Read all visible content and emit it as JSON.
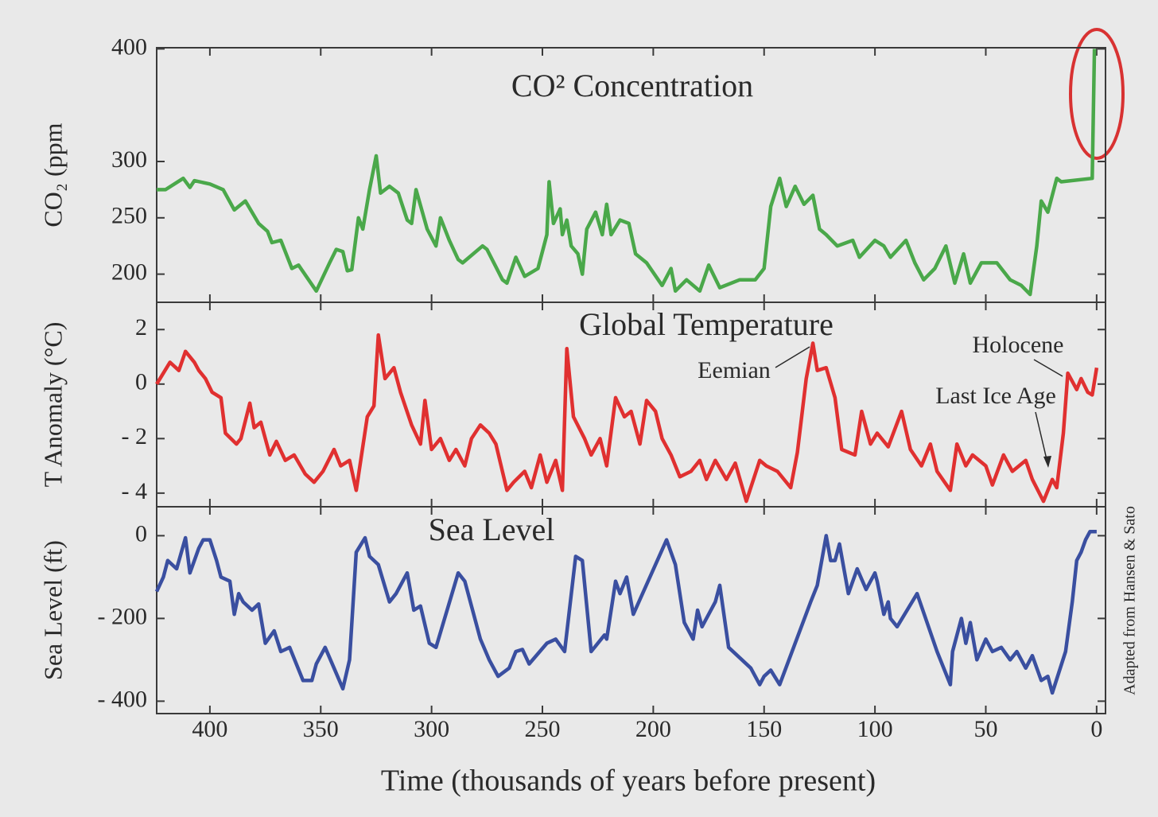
{
  "chart_data": [
    {
      "type": "line",
      "title": "CO² Concentration",
      "y_label": "CO₂ (ppm",
      "color": "#4aa84a",
      "xlim": [
        424,
        -4
      ],
      "ylim": [
        175,
        401
      ],
      "yticks": [
        200,
        250,
        300,
        400
      ],
      "x": [
        424,
        420,
        412,
        409,
        407,
        400,
        394,
        389,
        384,
        378,
        374,
        372,
        368,
        363,
        360,
        352,
        346,
        343,
        340,
        338,
        336,
        333,
        331,
        328,
        325,
        323,
        319,
        315,
        311,
        309,
        307,
        302,
        298,
        296,
        292,
        288,
        286,
        277,
        275,
        268,
        266,
        262,
        258,
        252,
        248,
        247,
        245,
        242,
        241,
        239,
        237,
        234,
        232,
        230,
        226,
        223,
        221,
        219,
        215,
        211,
        208,
        203,
        196,
        192,
        190,
        185,
        179,
        175,
        170,
        161,
        154,
        150,
        147,
        143,
        140,
        136,
        132,
        128,
        125,
        122,
        117,
        110,
        107,
        100,
        96,
        93,
        86,
        82,
        78,
        73,
        68,
        64,
        60,
        57,
        52,
        45,
        39,
        34,
        30,
        27,
        25,
        22,
        18,
        16,
        2,
        1
      ],
      "values": [
        275,
        275,
        285,
        277,
        283,
        280,
        275,
        257,
        265,
        245,
        238,
        228,
        230,
        205,
        208,
        185,
        210,
        222,
        220,
        203,
        204,
        250,
        240,
        275,
        305,
        272,
        278,
        272,
        248,
        245,
        275,
        240,
        225,
        250,
        230,
        213,
        210,
        225,
        222,
        195,
        192,
        215,
        198,
        205,
        235,
        282,
        245,
        258,
        235,
        248,
        225,
        218,
        200,
        240,
        255,
        235,
        262,
        235,
        248,
        245,
        218,
        210,
        190,
        205,
        185,
        195,
        185,
        208,
        188,
        195,
        195,
        205,
        260,
        285,
        260,
        278,
        262,
        270,
        240,
        235,
        225,
        230,
        215,
        230,
        225,
        215,
        230,
        210,
        195,
        205,
        225,
        192,
        218,
        192,
        210,
        210,
        195,
        190,
        182,
        225,
        265,
        255,
        285,
        282,
        285,
        400
      ]
    },
    {
      "type": "line",
      "title": "Global Temperature",
      "y_label": "T Anomaly (°C)",
      "color": "#e03030",
      "xlim": [
        424,
        -4
      ],
      "ylim": [
        -4.5,
        3
      ],
      "yticks": [
        {
          "value": -4,
          "label": "- 4"
        },
        {
          "value": -2,
          "label": "- 2"
        },
        0,
        2
      ],
      "annotations": [
        "Eemian",
        "Holocene",
        "Last Ice Age"
      ],
      "x": [
        424,
        418,
        414,
        411,
        407,
        405,
        402,
        399,
        395,
        393,
        388,
        386,
        382,
        380,
        377,
        373,
        370,
        366,
        362,
        357,
        353,
        349,
        344,
        341,
        337,
        334,
        329,
        326,
        324,
        321,
        317,
        314,
        309,
        305,
        303,
        300,
        296,
        292,
        289,
        285,
        282,
        278,
        274,
        271,
        266,
        263,
        258,
        255,
        251,
        248,
        244,
        241,
        239,
        236,
        231,
        228,
        224,
        221,
        217,
        213,
        210,
        206,
        203,
        199,
        196,
        192,
        188,
        183,
        179,
        176,
        172,
        167,
        163,
        158,
        152,
        149,
        144,
        138,
        135,
        131,
        128,
        126,
        122,
        118,
        115,
        109,
        106,
        102,
        99,
        94,
        88,
        84,
        79,
        75,
        72,
        66,
        63,
        59,
        56,
        50,
        47,
        42,
        38,
        32,
        29,
        24,
        20,
        18,
        15,
        13,
        9,
        7,
        4,
        2,
        0
      ],
      "values": [
        0,
        0.8,
        0.5,
        1.2,
        0.8,
        0.5,
        0.2,
        -0.3,
        -0.5,
        -1.8,
        -2.2,
        -2.0,
        -0.7,
        -1.6,
        -1.4,
        -2.6,
        -2.1,
        -2.8,
        -2.6,
        -3.3,
        -3.6,
        -3.2,
        -2.4,
        -3.0,
        -2.8,
        -3.9,
        -1.2,
        -0.8,
        1.8,
        0.2,
        0.6,
        -0.3,
        -1.5,
        -2.2,
        -0.6,
        -2.4,
        -2.0,
        -2.8,
        -2.4,
        -3.0,
        -2.0,
        -1.5,
        -1.8,
        -2.2,
        -3.9,
        -3.6,
        -3.2,
        -3.8,
        -2.6,
        -3.6,
        -2.8,
        -3.9,
        1.3,
        -1.2,
        -2.0,
        -2.6,
        -2.0,
        -3.0,
        -0.5,
        -1.2,
        -1.0,
        -2.2,
        -0.6,
        -1.0,
        -2.0,
        -2.6,
        -3.4,
        -3.2,
        -2.8,
        -3.5,
        -2.8,
        -3.5,
        -2.9,
        -4.3,
        -2.8,
        -3.0,
        -3.2,
        -3.8,
        -2.5,
        0.2,
        1.5,
        0.5,
        0.6,
        -0.5,
        -2.4,
        -2.6,
        -1.0,
        -2.2,
        -1.8,
        -2.3,
        -1.0,
        -2.4,
        -3.0,
        -2.2,
        -3.2,
        -3.9,
        -2.2,
        -3.0,
        -2.6,
        -3.0,
        -3.7,
        -2.6,
        -3.2,
        -2.8,
        -3.5,
        -4.3,
        -3.5,
        -3.8,
        -1.8,
        0.4,
        -0.2,
        0.2,
        -0.3,
        -0.4,
        0.6
      ]
    },
    {
      "type": "line",
      "title": "Sea Level",
      "y_label": "Sea Level (ft)",
      "color": "#3a4fa0",
      "x_label": "Time (thousands of years before present)",
      "source": "Adapted from Hansen & Sato",
      "xlim": [
        424,
        -4
      ],
      "ylim": [
        -430,
        70
      ],
      "xticks": [
        400,
        350,
        300,
        250,
        200,
        150,
        100,
        50,
        0
      ],
      "yticks": [
        {
          "value": -400,
          "label": "- 400"
        },
        {
          "value": -200,
          "label": "- 200"
        },
        0
      ],
      "x": [
        424,
        421,
        419,
        415,
        411,
        409,
        405,
        403,
        400,
        397,
        395,
        391,
        389,
        387,
        385,
        381,
        378,
        375,
        371,
        368,
        364,
        361,
        358,
        354,
        352,
        348,
        344,
        340,
        337,
        334,
        330,
        328,
        326,
        324,
        319,
        316,
        311,
        308,
        305,
        301,
        298,
        288,
        285,
        278,
        274,
        270,
        265,
        262,
        259,
        256,
        248,
        244,
        240,
        235,
        232,
        228,
        222,
        221,
        217,
        215,
        212,
        209,
        194,
        190,
        186,
        182,
        180,
        178,
        172,
        170,
        166,
        156,
        152,
        150,
        147,
        143,
        129,
        126,
        122,
        120,
        118,
        116,
        112,
        108,
        104,
        100,
        99,
        96,
        94,
        93,
        90,
        81,
        72,
        66,
        65,
        61,
        59,
        57,
        54,
        50,
        47,
        43,
        39,
        36,
        32,
        29,
        25,
        22,
        20,
        14,
        11,
        9,
        7,
        5,
        3,
        0
      ],
      "values": [
        -135,
        -100,
        -60,
        -80,
        -5,
        -90,
        -30,
        -10,
        -10,
        -60,
        -100,
        -110,
        -190,
        -140,
        -160,
        -180,
        -165,
        -260,
        -230,
        -280,
        -270,
        -310,
        -350,
        -350,
        -310,
        -270,
        -320,
        -370,
        -300,
        -40,
        -5,
        -50,
        -60,
        -70,
        -160,
        -140,
        -90,
        -180,
        -170,
        -260,
        -270,
        -90,
        -110,
        -250,
        -300,
        -340,
        -320,
        -280,
        -275,
        -310,
        -260,
        -250,
        -280,
        -50,
        -60,
        -280,
        -240,
        -250,
        -110,
        -140,
        -100,
        -190,
        -10,
        -70,
        -210,
        -250,
        -180,
        -220,
        -160,
        -120,
        -270,
        -320,
        -360,
        -340,
        -325,
        -360,
        -160,
        -120,
        0,
        -60,
        -60,
        -20,
        -140,
        -80,
        -130,
        -90,
        -110,
        -190,
        -160,
        -200,
        -220,
        -140,
        -280,
        -360,
        -280,
        -200,
        -260,
        -210,
        -300,
        -250,
        -280,
        -270,
        -300,
        -280,
        -320,
        -290,
        -350,
        -340,
        -380,
        -280,
        -160,
        -60,
        -40,
        -10,
        10,
        10
      ]
    }
  ]
}
